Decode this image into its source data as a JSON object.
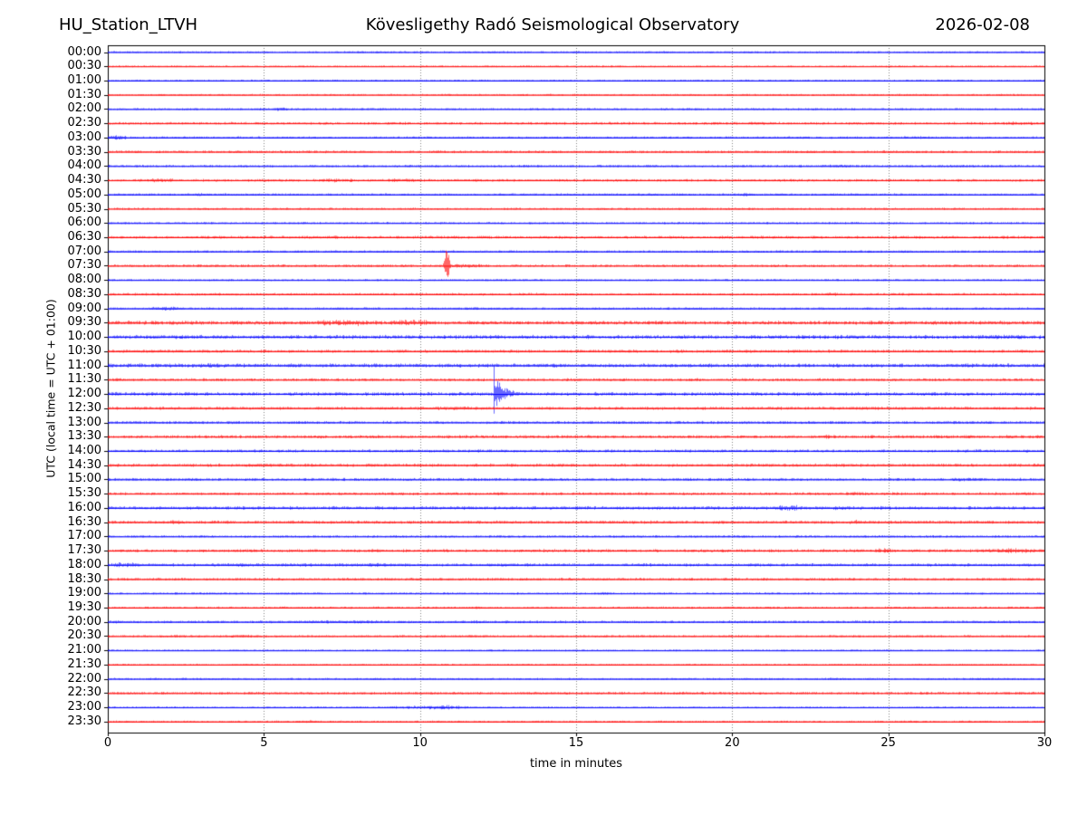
{
  "chart_data": {
    "type": "helicorder",
    "titles": {
      "left": "HU_Station_LTVH",
      "center": "Kövesligethy Radó Seismological Observatory",
      "right": "2026-02-08"
    },
    "xlabel": "time in minutes",
    "ylabel": "UTC (local time = UTC + 01:00)",
    "xlim": [
      0,
      30
    ],
    "x_ticks": [
      0,
      5,
      10,
      15,
      20,
      25,
      30
    ],
    "grid_minutes": [
      5,
      10,
      15,
      20,
      25
    ],
    "minutes_per_row": 30,
    "colors": {
      "trace_even": "#0000ff",
      "trace_odd": "#ff0000",
      "grid": "#808080",
      "axis": "#000000",
      "text": "#000000",
      "background": "#ffffff"
    },
    "rows": [
      {
        "time": "00:00",
        "noise": 0.7
      },
      {
        "time": "00:30",
        "noise": 0.7
      },
      {
        "time": "01:00",
        "noise": 0.75
      },
      {
        "time": "01:30",
        "noise": 0.7
      },
      {
        "time": "02:00",
        "noise": 0.8
      },
      {
        "time": "02:30",
        "noise": 1.0
      },
      {
        "time": "03:00",
        "noise": 0.9
      },
      {
        "time": "03:30",
        "noise": 1.0
      },
      {
        "time": "04:00",
        "noise": 0.9
      },
      {
        "time": "04:30",
        "noise": 1.0
      },
      {
        "time": "05:00",
        "noise": 0.9
      },
      {
        "time": "05:30",
        "noise": 0.8
      },
      {
        "time": "06:00",
        "noise": 0.8
      },
      {
        "time": "06:30",
        "noise": 1.1
      },
      {
        "time": "07:00",
        "noise": 0.9
      },
      {
        "time": "07:30",
        "noise": 1.0
      },
      {
        "time": "08:00",
        "noise": 0.8
      },
      {
        "time": "08:30",
        "noise": 1.0
      },
      {
        "time": "09:00",
        "noise": 0.9
      },
      {
        "time": "09:30",
        "noise": 1.5
      },
      {
        "time": "10:00",
        "noise": 1.5
      },
      {
        "time": "10:30",
        "noise": 1.2
      },
      {
        "time": "11:00",
        "noise": 1.5
      },
      {
        "time": "11:30",
        "noise": 1.1
      },
      {
        "time": "12:00",
        "noise": 1.4
      },
      {
        "time": "12:30",
        "noise": 1.2
      },
      {
        "time": "13:00",
        "noise": 1.1
      },
      {
        "time": "13:30",
        "noise": 1.2
      },
      {
        "time": "14:00",
        "noise": 1.1
      },
      {
        "time": "14:30",
        "noise": 1.2
      },
      {
        "time": "15:00",
        "noise": 1.1
      },
      {
        "time": "15:30",
        "noise": 1.1
      },
      {
        "time": "16:00",
        "noise": 1.3
      },
      {
        "time": "16:30",
        "noise": 1.2
      },
      {
        "time": "17:00",
        "noise": 0.9
      },
      {
        "time": "17:30",
        "noise": 1.2
      },
      {
        "time": "18:00",
        "noise": 1.2
      },
      {
        "time": "18:30",
        "noise": 1.0
      },
      {
        "time": "19:00",
        "noise": 0.8
      },
      {
        "time": "19:30",
        "noise": 0.85
      },
      {
        "time": "20:00",
        "noise": 1.0
      },
      {
        "time": "20:30",
        "noise": 0.85
      },
      {
        "time": "21:00",
        "noise": 0.7
      },
      {
        "time": "21:30",
        "noise": 0.7
      },
      {
        "time": "22:00",
        "noise": 0.75
      },
      {
        "time": "22:30",
        "noise": 1.0
      },
      {
        "time": "23:00",
        "noise": 0.7
      },
      {
        "time": "23:30",
        "noise": 0.8
      }
    ],
    "events": [
      {
        "row": 4,
        "type": "burst",
        "start": 5.2,
        "end": 5.8,
        "amp": 2.2
      },
      {
        "row": 5,
        "type": "burst",
        "start": 20.3,
        "end": 21.6,
        "amp": 1.4
      },
      {
        "row": 5,
        "type": "burst",
        "start": 28.4,
        "end": 30,
        "amp": 1.8
      },
      {
        "row": 6,
        "type": "burst",
        "start": 0.0,
        "end": 0.65,
        "amp": 2.6
      },
      {
        "row": 6,
        "type": "burst",
        "start": 6.5,
        "end": 6.9,
        "amp": 1.4
      },
      {
        "row": 6,
        "type": "burst",
        "start": 25.4,
        "end": 26.6,
        "amp": 1.5
      },
      {
        "row": 7,
        "type": "burst",
        "start": 10.3,
        "end": 10.9,
        "amp": 1.5
      },
      {
        "row": 7,
        "type": "burst",
        "start": 15.9,
        "end": 16.3,
        "amp": 1.3
      },
      {
        "row": 7,
        "type": "burst",
        "start": 23.0,
        "end": 23.5,
        "amp": 1.5
      },
      {
        "row": 8,
        "type": "burst",
        "start": 22.7,
        "end": 24.1,
        "amp": 1.6
      },
      {
        "row": 8,
        "type": "burst",
        "start": 25.9,
        "end": 28.0,
        "amp": 1.4
      },
      {
        "row": 9,
        "type": "burst",
        "start": 1.2,
        "end": 2.3,
        "amp": 2.2
      },
      {
        "row": 9,
        "type": "burst",
        "start": 6.7,
        "end": 8.0,
        "amp": 2.2
      },
      {
        "row": 9,
        "type": "burst",
        "start": 8.8,
        "end": 10.1,
        "amp": 2.0
      },
      {
        "row": 10,
        "type": "burst",
        "start": 2.7,
        "end": 3.2,
        "amp": 1.5
      },
      {
        "row": 10,
        "type": "burst",
        "start": 16.8,
        "end": 17.7,
        "amp": 1.7
      },
      {
        "row": 10,
        "type": "burst",
        "start": 19.9,
        "end": 20.8,
        "amp": 1.8
      },
      {
        "row": 13,
        "type": "burst",
        "start": 19.2,
        "end": 20.1,
        "amp": 1.6
      },
      {
        "row": 15,
        "type": "spike",
        "center": 10.85,
        "width": 0.09,
        "amp": 25
      },
      {
        "row": 15,
        "type": "burst",
        "start": 10.55,
        "end": 12.3,
        "amp": 2.2
      },
      {
        "row": 17,
        "type": "burst",
        "start": 22.9,
        "end": 23.5,
        "amp": 1.8
      },
      {
        "row": 18,
        "type": "burst",
        "start": 1.3,
        "end": 2.4,
        "amp": 2.4
      },
      {
        "row": 18,
        "type": "burst",
        "start": 5.3,
        "end": 5.8,
        "amp": 1.3
      },
      {
        "row": 19,
        "type": "burst",
        "start": 6.4,
        "end": 8.8,
        "amp": 3.3
      },
      {
        "row": 19,
        "type": "burst",
        "start": 8.9,
        "end": 10.6,
        "amp": 3.3
      },
      {
        "row": 19,
        "type": "burst",
        "start": 10.6,
        "end": 13.0,
        "amp": 1.8
      },
      {
        "row": 20,
        "type": "burst",
        "start": 0.0,
        "end": 5.0,
        "amp": 1.9
      },
      {
        "row": 20,
        "type": "burst",
        "start": 13.0,
        "end": 14.0,
        "amp": 1.6
      },
      {
        "row": 20,
        "type": "burst",
        "start": 27.3,
        "end": 30,
        "amp": 2.3
      },
      {
        "row": 21,
        "type": "burst",
        "start": 0.0,
        "end": 2.0,
        "amp": 1.5
      },
      {
        "row": 21,
        "type": "burst",
        "start": 21.7,
        "end": 22.3,
        "amp": 1.7
      },
      {
        "row": 22,
        "type": "burst",
        "start": 2.4,
        "end": 3.7,
        "amp": 2.4
      },
      {
        "row": 22,
        "type": "burst",
        "start": 14.0,
        "end": 14.6,
        "amp": 2.0
      },
      {
        "row": 22,
        "type": "burst",
        "start": 25.8,
        "end": 28.6,
        "amp": 1.8
      },
      {
        "row": 23,
        "type": "burst",
        "start": 0.05,
        "end": 0.5,
        "amp": 1.7
      },
      {
        "row": 24,
        "type": "quake",
        "onset": 12.35,
        "peak": 26,
        "coda": 6.5
      },
      {
        "row": 24,
        "type": "burst",
        "start": 20.8,
        "end": 26.2,
        "amp": 1.5
      },
      {
        "row": 25,
        "type": "burst",
        "start": 9.5,
        "end": 12.1,
        "amp": 2.0
      },
      {
        "row": 27,
        "type": "burst",
        "start": 6.6,
        "end": 7.1,
        "amp": 2.0
      },
      {
        "row": 27,
        "type": "burst",
        "start": 8.3,
        "end": 8.8,
        "amp": 2.0
      },
      {
        "row": 27,
        "type": "burst",
        "start": 22.7,
        "end": 23.3,
        "amp": 2.0
      },
      {
        "row": 28,
        "type": "burst",
        "start": 14.6,
        "end": 15.0,
        "amp": 1.4
      },
      {
        "row": 28,
        "type": "burst",
        "start": 19.4,
        "end": 19.8,
        "amp": 1.3
      },
      {
        "row": 29,
        "type": "burst",
        "start": 0.1,
        "end": 0.5,
        "amp": 1.5
      },
      {
        "row": 29,
        "type": "burst",
        "start": 4.0,
        "end": 6.1,
        "amp": 1.9
      },
      {
        "row": 30,
        "type": "burst",
        "start": 26.7,
        "end": 28.3,
        "amp": 1.9
      },
      {
        "row": 31,
        "type": "burst",
        "start": 12.3,
        "end": 12.8,
        "amp": 1.9
      },
      {
        "row": 31,
        "type": "burst",
        "start": 23.7,
        "end": 24.3,
        "amp": 1.9
      },
      {
        "row": 32,
        "type": "burst",
        "start": 21.1,
        "end": 22.4,
        "amp": 3.0
      },
      {
        "row": 32,
        "type": "burst",
        "start": 23.1,
        "end": 23.8,
        "amp": 2.2
      },
      {
        "row": 32,
        "type": "burst",
        "start": 25.0,
        "end": 26.0,
        "amp": 1.5
      },
      {
        "row": 33,
        "type": "burst",
        "start": 1.8,
        "end": 2.5,
        "amp": 2.4
      },
      {
        "row": 33,
        "type": "burst",
        "start": 12.3,
        "end": 12.8,
        "amp": 1.8
      },
      {
        "row": 33,
        "type": "burst",
        "start": 23.6,
        "end": 24.2,
        "amp": 2.4
      },
      {
        "row": 33,
        "type": "burst",
        "start": 24.5,
        "end": 26.3,
        "amp": 1.5
      },
      {
        "row": 34,
        "type": "burst",
        "start": 10.0,
        "end": 10.5,
        "amp": 1.3
      },
      {
        "row": 34,
        "type": "burst",
        "start": 20.0,
        "end": 20.5,
        "amp": 1.3
      },
      {
        "row": 35,
        "type": "burst",
        "start": 24.3,
        "end": 25.2,
        "amp": 2.3
      },
      {
        "row": 35,
        "type": "burst",
        "start": 28.1,
        "end": 30,
        "amp": 2.4
      },
      {
        "row": 36,
        "type": "burst",
        "start": 0.0,
        "end": 1.1,
        "amp": 3.0
      },
      {
        "row": 36,
        "type": "burst",
        "start": 0.0,
        "end": 10.0,
        "amp": 1.5
      },
      {
        "row": 36,
        "type": "burst",
        "start": 3.7,
        "end": 4.6,
        "amp": 2.0
      },
      {
        "row": 36,
        "type": "burst",
        "start": 5.9,
        "end": 6.7,
        "amp": 2.0
      },
      {
        "row": 36,
        "type": "burst",
        "start": 7.8,
        "end": 9.3,
        "amp": 2.0
      },
      {
        "row": 37,
        "type": "burst",
        "start": 7.4,
        "end": 7.9,
        "amp": 1.3
      },
      {
        "row": 37,
        "type": "burst",
        "start": 20.8,
        "end": 21.4,
        "amp": 1.5
      },
      {
        "row": 38,
        "type": "burst",
        "start": 15.6,
        "end": 16.1,
        "amp": 1.6
      },
      {
        "row": 39,
        "type": "burst",
        "start": 5.4,
        "end": 5.9,
        "amp": 1.2
      },
      {
        "row": 39,
        "type": "burst",
        "start": 19.8,
        "end": 20.3,
        "amp": 1.4
      },
      {
        "row": 39,
        "type": "burst",
        "start": 23.5,
        "end": 24.0,
        "amp": 1.2
      },
      {
        "row": 40,
        "type": "burst",
        "start": 0.0,
        "end": 0.5,
        "amp": 1.7
      },
      {
        "row": 40,
        "type": "burst",
        "start": 5.5,
        "end": 9.5,
        "amp": 1.7
      },
      {
        "row": 40,
        "type": "burst",
        "start": 11.5,
        "end": 12.1,
        "amp": 1.5
      },
      {
        "row": 41,
        "type": "burst",
        "start": 2.0,
        "end": 2.5,
        "amp": 1.5
      },
      {
        "row": 41,
        "type": "burst",
        "start": 3.4,
        "end": 5.0,
        "amp": 1.6
      },
      {
        "row": 46,
        "type": "burst",
        "start": 8.3,
        "end": 12.3,
        "amp": 1.5
      },
      {
        "row": 46,
        "type": "burst",
        "start": 10.1,
        "end": 11.4,
        "amp": 2.8
      },
      {
        "row": 47,
        "type": "burst",
        "start": 6.2,
        "end": 6.8,
        "amp": 1.6
      },
      {
        "row": 47,
        "type": "burst",
        "start": 12.7,
        "end": 13.1,
        "amp": 1.2
      }
    ]
  }
}
